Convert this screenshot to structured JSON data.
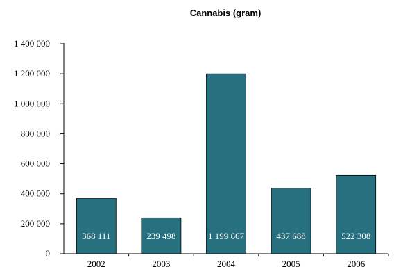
{
  "chart_data": {
    "type": "bar",
    "title": "Cannabis (gram)",
    "xlabel": "",
    "ylabel": "",
    "categories": [
      "2002",
      "2003",
      "2004",
      "2005",
      "2006"
    ],
    "values": [
      368111,
      239498,
      1199667,
      437688,
      522308
    ],
    "data_labels": [
      "368 111",
      "239 498",
      "1 199 667",
      "437 688",
      "522 308"
    ],
    "ylim": [
      0,
      1400000
    ],
    "y_ticks": [
      0,
      200000,
      400000,
      600000,
      800000,
      1000000,
      1200000,
      1400000
    ],
    "y_tick_labels": [
      "0",
      "200 000",
      "400 000",
      "600 000",
      "800 000",
      "1 000 000",
      "1 200 000",
      "1 400 000"
    ],
    "grid": false,
    "legend": "none",
    "bar_color": "#26707f"
  }
}
